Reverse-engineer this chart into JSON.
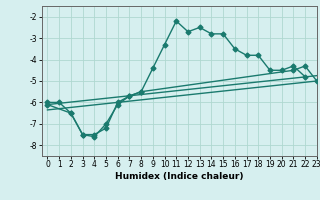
{
  "title": "",
  "xlabel": "Humidex (Indice chaleur)",
  "xlim": [
    -0.5,
    23
  ],
  "ylim": [
    -8.5,
    -1.5
  ],
  "yticks": [
    -8,
    -7,
    -6,
    -5,
    -4,
    -3,
    -2
  ],
  "xticks": [
    0,
    1,
    2,
    3,
    4,
    5,
    6,
    7,
    8,
    9,
    10,
    11,
    12,
    13,
    14,
    15,
    16,
    17,
    18,
    19,
    20,
    21,
    22,
    23
  ],
  "line_color": "#1a7a6e",
  "bg_color": "#d6efef",
  "grid_color": "#afd8d0",
  "line1_x": [
    0,
    1,
    2,
    3,
    4,
    5,
    6,
    7,
    8,
    9,
    10,
    11,
    12,
    13,
    14,
    15,
    16,
    17,
    18,
    19,
    20,
    21,
    22
  ],
  "line1_y": [
    -6.0,
    -6.0,
    -6.5,
    -7.5,
    -7.5,
    -7.2,
    -6.0,
    -5.7,
    -5.5,
    -4.4,
    -3.3,
    -2.2,
    -2.7,
    -2.5,
    -2.8,
    -2.8,
    -3.5,
    -3.8,
    -3.8,
    -4.5,
    -4.5,
    -4.3,
    -4.8
  ],
  "line2_x": [
    0,
    2,
    3,
    4,
    5,
    6,
    7,
    8,
    21,
    22,
    23
  ],
  "line2_y": [
    -6.1,
    -6.5,
    -7.5,
    -7.6,
    -7.0,
    -6.1,
    -5.7,
    -5.5,
    -4.5,
    -4.3,
    -5.0
  ],
  "line3_x": [
    0,
    23
  ],
  "line3_y": [
    -6.1,
    -4.75
  ],
  "line4_x": [
    0,
    23
  ],
  "line4_y": [
    -6.35,
    -5.0
  ],
  "marker": "D",
  "marker_size": 2.5,
  "line_width": 1.0
}
